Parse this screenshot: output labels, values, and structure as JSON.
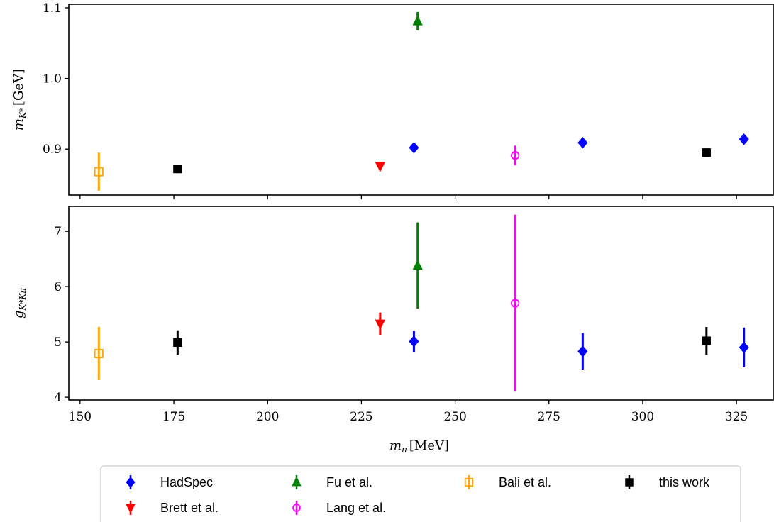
{
  "chart_data": {
    "type": "scatter",
    "x_axis": {
      "label": {
        "main": "m",
        "sub": "π",
        "unit": "[MeV]"
      },
      "xlim": [
        147,
        335
      ],
      "ticks": [
        150,
        175,
        200,
        225,
        250,
        275,
        300,
        325
      ]
    },
    "panels": [
      {
        "id": "mass",
        "ylabel": {
          "main": "m",
          "sub": "K*",
          "unit": "[GeV]"
        },
        "ylim": [
          0.835,
          1.105
        ],
        "yticks": [
          0.9,
          1.0,
          1.1
        ],
        "ytick_labels": [
          "0.9",
          "1.0",
          "1.1"
        ]
      },
      {
        "id": "coupling",
        "ylabel": {
          "main": "g",
          "sub": "K*Kπ",
          "unit": ""
        },
        "ylim": [
          3.95,
          7.45
        ],
        "yticks": [
          4,
          5,
          6,
          7
        ],
        "ytick_labels": [
          "4",
          "5",
          "6",
          "7"
        ]
      }
    ],
    "series": [
      {
        "name": "HadSpec",
        "color": "#0000ff",
        "marker": "diamond",
        "filled": true,
        "points": [
          {
            "x": 239,
            "mass": 0.902,
            "mass_err": 0.003,
            "g": 5.01,
            "g_err": 0.19
          },
          {
            "x": 284,
            "mass": 0.909,
            "mass_err": 0.002,
            "g": 4.83,
            "g_err": 0.33
          },
          {
            "x": 327,
            "mass": 0.914,
            "mass_err": 0.002,
            "g": 4.9,
            "g_err": 0.36
          }
        ]
      },
      {
        "name": "Brett et al.",
        "color": "#ff0000",
        "marker": "triangle-down",
        "filled": true,
        "points": [
          {
            "x": 230,
            "mass": 0.876,
            "mass_err": 0.002,
            "g": 5.33,
            "g_err": 0.2
          }
        ]
      },
      {
        "name": "Fu et al.",
        "color": "#008000",
        "marker": "triangle-up",
        "filled": true,
        "points": [
          {
            "x": 240,
            "mass": 1.081,
            "mass_err": 0.013,
            "g": 6.38,
            "g_err": 0.78
          }
        ]
      },
      {
        "name": "Lang et al.",
        "color": "#ff00ff",
        "marker": "circle",
        "filled": false,
        "points": [
          {
            "x": 266,
            "mass": 0.891,
            "mass_err": 0.014,
            "g": 5.7,
            "g_err": 1.6
          }
        ]
      },
      {
        "name": "Bali et al.",
        "color": "#ffa500",
        "marker": "square",
        "filled": false,
        "points": [
          {
            "x": 155,
            "mass": 0.868,
            "mass_err": 0.027,
            "g": 4.79,
            "g_err": 0.48
          }
        ]
      },
      {
        "name": "this work",
        "color": "#000000",
        "marker": "square",
        "filled": true,
        "points": [
          {
            "x": 176,
            "mass": 0.872,
            "mass_err": 0.006,
            "g": 4.99,
            "g_err": 0.22
          },
          {
            "x": 317,
            "mass": 0.895,
            "mass_err": 0.003,
            "g": 5.02,
            "g_err": 0.25
          }
        ]
      }
    ],
    "legend": {
      "placement": "bottom-center",
      "columns": 4,
      "order": [
        "HadSpec",
        "Fu et al.",
        "Bali et al.",
        "this work",
        "Brett et al.",
        "Lang et al."
      ]
    },
    "grid": false
  }
}
